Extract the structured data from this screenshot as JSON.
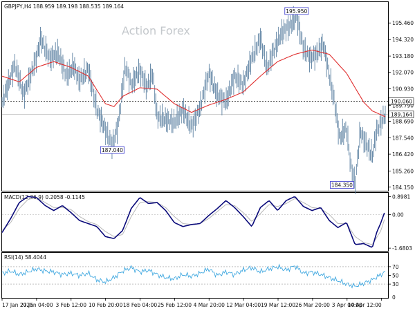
{
  "chart_data": [
    {
      "type": "line",
      "panel": "price",
      "title": "GBPJPY,H4  188.959 189.198 188.535 189.164",
      "watermark": "Action Forex",
      "ylim": [
        183.9,
        196.9
      ],
      "yticks": [
        "195.460",
        "194.320",
        "193.180",
        "192.070",
        "190.930",
        "189.790",
        "188.690",
        "187.540",
        "186.420",
        "185.260",
        "184.150"
      ],
      "grid": false,
      "x": [
        "17 Jan 2025",
        "27 Jan 04:00",
        "3 Feb 12:00",
        "10 Feb 20:00",
        "18 Feb 04:00",
        "25 Feb 12:00",
        "4 Mar 20:00",
        "12 Mar 04:00",
        "19 Mar 12:00",
        "26 Mar 20:00",
        "3 Apr 04:00",
        "10 Apr 12:00"
      ],
      "price_anchors": [
        [
          0,
          190.0
        ],
        [
          1.5,
          192.6
        ],
        [
          2.5,
          190.5
        ],
        [
          3.0,
          191.3
        ],
        [
          4.0,
          193.1
        ],
        [
          4.5,
          194.4
        ],
        [
          5.5,
          193.0
        ],
        [
          6.5,
          193.4
        ],
        [
          7.5,
          191.8
        ],
        [
          8.3,
          192.5
        ],
        [
          9.0,
          191.5
        ],
        [
          10.0,
          192.3
        ],
        [
          11.0,
          189.5
        ],
        [
          12.0,
          188.1
        ],
        [
          12.8,
          187.0
        ],
        [
          13.5,
          188.5
        ],
        [
          14.3,
          192.5
        ],
        [
          15.0,
          191.2
        ],
        [
          16.0,
          192.2
        ],
        [
          16.8,
          191.0
        ],
        [
          17.5,
          192.0
        ],
        [
          18.0,
          189.0
        ],
        [
          19.0,
          188.8
        ],
        [
          20.0,
          188.6
        ],
        [
          21.0,
          189.5
        ],
        [
          22.0,
          188.3
        ],
        [
          23.0,
          189.6
        ],
        [
          24.0,
          192.0
        ],
        [
          25.0,
          190.5
        ],
        [
          26.0,
          190.0
        ],
        [
          27.0,
          191.8
        ],
        [
          28.0,
          191.2
        ],
        [
          29.0,
          193.0
        ],
        [
          30.0,
          194.4
        ],
        [
          30.8,
          192.3
        ],
        [
          31.5,
          193.5
        ],
        [
          32.5,
          194.8
        ],
        [
          33.5,
          195.3
        ],
        [
          34.2,
          195.95
        ],
        [
          35.0,
          193.7
        ],
        [
          35.8,
          193.0
        ],
        [
          36.5,
          193.3
        ],
        [
          37.3,
          194.0
        ],
        [
          37.8,
          192.5
        ],
        [
          38.6,
          190.0
        ],
        [
          39.2,
          187.5
        ],
        [
          40.0,
          188.2
        ],
        [
          40.5,
          185.6
        ],
        [
          41.0,
          184.35
        ],
        [
          41.6,
          188.0
        ],
        [
          42.2,
          187.2
        ],
        [
          43.0,
          186.3
        ],
        [
          43.5,
          188.0
        ],
        [
          44.0,
          188.6
        ],
        [
          44.5,
          189.16
        ]
      ],
      "ma_anchors": [
        [
          0,
          191.8
        ],
        [
          2,
          191.4
        ],
        [
          4,
          192.4
        ],
        [
          6,
          192.8
        ],
        [
          8,
          192.4
        ],
        [
          10,
          191.8
        ],
        [
          12,
          189.9
        ],
        [
          13,
          189.7
        ],
        [
          14,
          190.4
        ],
        [
          16,
          191.0
        ],
        [
          18,
          190.9
        ],
        [
          20,
          189.9
        ],
        [
          22,
          189.3
        ],
        [
          24,
          189.8
        ],
        [
          26,
          190.2
        ],
        [
          28,
          190.7
        ],
        [
          30,
          191.8
        ],
        [
          32,
          192.8
        ],
        [
          34,
          193.3
        ],
        [
          36,
          193.6
        ],
        [
          38,
          193.3
        ],
        [
          40,
          192.0
        ],
        [
          42,
          190.0
        ],
        [
          43,
          189.4
        ],
        [
          44.5,
          189.0
        ]
      ],
      "series": [
        {
          "name": "GBPJPY,H4"
        }
      ],
      "annotations": [
        {
          "text": "195.950",
          "x": 34.2,
          "y": 195.95
        },
        {
          "text": "187.040",
          "x": 12.8,
          "y": 187.04
        },
        {
          "text": "184.350",
          "x": 41.0,
          "y": 184.35
        }
      ],
      "price_levels": [
        {
          "label": "190.060",
          "value": 190.06,
          "style": "dotted",
          "color": "#000000"
        },
        {
          "label": "189.164",
          "value": 189.164,
          "style": "solid",
          "color": "#c8c8c8"
        }
      ],
      "colors": {
        "price": "#5a7fa0",
        "ma": "#e03030",
        "label_border": "#3333cc"
      }
    },
    {
      "type": "line",
      "panel": "macd",
      "title": "MACD(12,26,9) 0.2058 -0.1145",
      "ylim": [
        -1.7803,
        1.05
      ],
      "yticks": [
        "0.8981",
        "0.00",
        "-1.6803"
      ],
      "macd_anchors": [
        [
          0,
          -0.9
        ],
        [
          1,
          -0.2
        ],
        [
          2,
          0.6
        ],
        [
          3,
          0.9
        ],
        [
          4,
          0.85
        ],
        [
          5,
          0.45
        ],
        [
          6,
          0.2
        ],
        [
          7,
          0.45
        ],
        [
          8,
          0.1
        ],
        [
          9,
          -0.3
        ],
        [
          10,
          -0.45
        ],
        [
          11,
          -0.6
        ],
        [
          12,
          -1.1
        ],
        [
          13,
          -1.2
        ],
        [
          14,
          -0.8
        ],
        [
          15,
          0.3
        ],
        [
          16,
          0.85
        ],
        [
          17,
          0.55
        ],
        [
          18,
          0.6
        ],
        [
          19,
          0.2
        ],
        [
          20,
          -0.4
        ],
        [
          21,
          -0.6
        ],
        [
          22,
          -0.5
        ],
        [
          23,
          -0.45
        ],
        [
          24,
          -0.05
        ],
        [
          25,
          0.3
        ],
        [
          26,
          0.7
        ],
        [
          27,
          0.35
        ],
        [
          28,
          -0.1
        ],
        [
          29,
          -0.6
        ],
        [
          30,
          0.35
        ],
        [
          31,
          0.7
        ],
        [
          32,
          0.2
        ],
        [
          33,
          0.7
        ],
        [
          34,
          0.9
        ],
        [
          35,
          0.4
        ],
        [
          36,
          0.2
        ],
        [
          37,
          0.35
        ],
        [
          38,
          -0.3
        ],
        [
          39,
          -0.65
        ],
        [
          40,
          -0.4
        ],
        [
          41,
          -1.5
        ],
        [
          42,
          -1.45
        ],
        [
          43,
          -1.65
        ],
        [
          43.5,
          -0.9
        ],
        [
          44,
          -0.4
        ],
        [
          44.5,
          0.2058
        ]
      ],
      "signal_anchors": [
        [
          0,
          -0.8
        ],
        [
          1,
          -0.4
        ],
        [
          2,
          0.3
        ],
        [
          3,
          0.75
        ],
        [
          4,
          0.85
        ],
        [
          5,
          0.6
        ],
        [
          6,
          0.35
        ],
        [
          7,
          0.35
        ],
        [
          8,
          0.25
        ],
        [
          9,
          -0.1
        ],
        [
          10,
          -0.35
        ],
        [
          11,
          -0.5
        ],
        [
          12,
          -0.85
        ],
        [
          13,
          -1.1
        ],
        [
          14,
          -1.0
        ],
        [
          15,
          -0.1
        ],
        [
          16,
          0.6
        ],
        [
          17,
          0.65
        ],
        [
          18,
          0.6
        ],
        [
          19,
          0.35
        ],
        [
          20,
          -0.1
        ],
        [
          21,
          -0.45
        ],
        [
          22,
          -0.5
        ],
        [
          23,
          -0.45
        ],
        [
          24,
          -0.2
        ],
        [
          25,
          0.15
        ],
        [
          26,
          0.5
        ],
        [
          27,
          0.45
        ],
        [
          28,
          0.1
        ],
        [
          29,
          -0.35
        ],
        [
          30,
          0.05
        ],
        [
          31,
          0.5
        ],
        [
          32,
          0.4
        ],
        [
          33,
          0.55
        ],
        [
          34,
          0.8
        ],
        [
          35,
          0.6
        ],
        [
          36,
          0.35
        ],
        [
          37,
          0.3
        ],
        [
          38,
          0.0
        ],
        [
          39,
          -0.45
        ],
        [
          40,
          -0.45
        ],
        [
          41,
          -1.1
        ],
        [
          42,
          -1.4
        ],
        [
          43,
          -1.5
        ],
        [
          44,
          -0.8
        ],
        [
          44.5,
          -0.1145
        ]
      ],
      "colors": {
        "macd": "#0a0a7a",
        "signal": "#b8b8b8"
      }
    },
    {
      "type": "line",
      "panel": "rsi",
      "title": "RSI(14) 58.4044",
      "ylim": [
        0,
        100
      ],
      "yticks": [
        "70",
        "50",
        "30",
        "0"
      ],
      "levels": [
        70,
        30
      ],
      "rsi_anchors": [
        [
          0,
          55
        ],
        [
          1,
          60
        ],
        [
          2,
          52
        ],
        [
          3,
          58
        ],
        [
          4,
          65
        ],
        [
          5,
          60
        ],
        [
          6,
          58
        ],
        [
          7,
          52
        ],
        [
          8,
          55
        ],
        [
          9,
          50
        ],
        [
          10,
          55
        ],
        [
          11,
          40
        ],
        [
          12,
          35
        ],
        [
          13,
          45
        ],
        [
          14,
          60
        ],
        [
          15,
          68
        ],
        [
          16,
          58
        ],
        [
          17,
          62
        ],
        [
          18,
          52
        ],
        [
          19,
          45
        ],
        [
          20,
          42
        ],
        [
          21,
          52
        ],
        [
          22,
          48
        ],
        [
          23,
          55
        ],
        [
          24,
          65
        ],
        [
          25,
          50
        ],
        [
          26,
          58
        ],
        [
          27,
          52
        ],
        [
          28,
          62
        ],
        [
          29,
          68
        ],
        [
          30,
          58
        ],
        [
          31,
          65
        ],
        [
          32,
          70
        ],
        [
          33,
          62
        ],
        [
          34,
          72
        ],
        [
          35,
          55
        ],
        [
          36,
          58
        ],
        [
          37,
          52
        ],
        [
          38,
          45
        ],
        [
          39,
          38
        ],
        [
          40,
          30
        ],
        [
          41,
          25
        ],
        [
          42,
          32
        ],
        [
          43,
          40
        ],
        [
          44,
          52
        ],
        [
          44.5,
          58.4
        ]
      ],
      "colors": {
        "rsi": "#40a8e0",
        "levels": "#999999"
      }
    }
  ]
}
